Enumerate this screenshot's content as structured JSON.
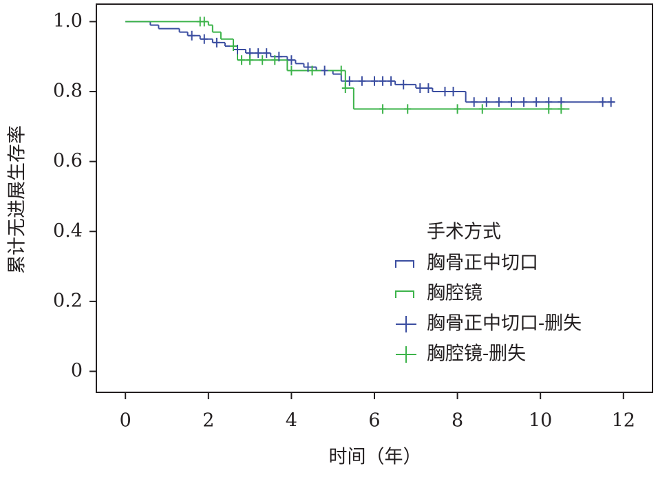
{
  "chart_data": {
    "type": "kaplan-meier",
    "x_label": "时间（年）",
    "y_label": "累计无进展生存率",
    "xlim": [
      -0.7,
      12.7
    ],
    "ylim": [
      -0.06,
      1.05
    ],
    "xticks": [
      0,
      2,
      4,
      6,
      8,
      10,
      12
    ],
    "yticks": [
      {
        "value": 1,
        "label": "1.0"
      },
      0.8,
      0.6,
      0.4,
      0.2,
      0
    ],
    "legend_title": "手术方式",
    "legend_position": "lower right",
    "series": [
      {
        "name": "胸骨正中切口",
        "kind": "step",
        "color": "#3a4da0",
        "x": [
          0,
          0.6,
          0.8,
          1.3,
          1.5,
          1.8,
          2.1,
          2.4,
          2.6,
          2.9,
          3.5,
          3.9,
          4.1,
          4.3,
          4.6,
          5.0,
          5.2,
          6.5,
          7.0,
          7.4,
          8.2,
          11.8
        ],
        "values": [
          1,
          0.99,
          0.98,
          0.97,
          0.96,
          0.95,
          0.94,
          0.93,
          0.92,
          0.91,
          0.9,
          0.89,
          0.88,
          0.87,
          0.86,
          0.85,
          0.83,
          0.82,
          0.81,
          0.8,
          0.77,
          0.77
        ]
      },
      {
        "name": "胸腔镜",
        "kind": "step",
        "color": "#3cb34a",
        "x": [
          0,
          2.0,
          2.1,
          2.3,
          2.6,
          2.7,
          3.9,
          5.3,
          5.5,
          10.7
        ],
        "values": [
          1,
          0.99,
          0.97,
          0.95,
          0.93,
          0.89,
          0.86,
          0.81,
          0.75,
          0.75
        ]
      },
      {
        "name": "胸骨正中切口-删失",
        "kind": "censor",
        "color": "#3a4da0",
        "x": [
          1.6,
          1.9,
          2.2,
          2.7,
          3.0,
          3.2,
          3.4,
          3.7,
          4.0,
          4.4,
          4.8,
          5.4,
          5.7,
          6.0,
          6.2,
          6.4,
          6.7,
          7.1,
          7.3,
          7.7,
          7.9,
          8.4,
          8.7,
          9.0,
          9.3,
          9.6,
          9.9,
          10.2,
          10.5,
          11.5,
          11.7
        ],
        "values": [
          0.96,
          0.95,
          0.94,
          0.92,
          0.91,
          0.91,
          0.91,
          0.9,
          0.89,
          0.87,
          0.86,
          0.83,
          0.83,
          0.83,
          0.83,
          0.83,
          0.82,
          0.81,
          0.81,
          0.8,
          0.8,
          0.77,
          0.77,
          0.77,
          0.77,
          0.77,
          0.77,
          0.77,
          0.77,
          0.77,
          0.77
        ]
      },
      {
        "name": "胸腔镜-删失",
        "kind": "censor",
        "color": "#3cb34a",
        "x": [
          1.8,
          1.9,
          2.6,
          2.8,
          3.0,
          3.3,
          3.6,
          4.0,
          4.5,
          5.2,
          5.3,
          6.2,
          6.8,
          8.0,
          8.6,
          10.2,
          10.5
        ],
        "values": [
          1,
          1,
          0.93,
          0.89,
          0.89,
          0.89,
          0.89,
          0.86,
          0.86,
          0.86,
          0.81,
          0.75,
          0.75,
          0.75,
          0.75,
          0.75,
          0.75
        ]
      }
    ]
  }
}
